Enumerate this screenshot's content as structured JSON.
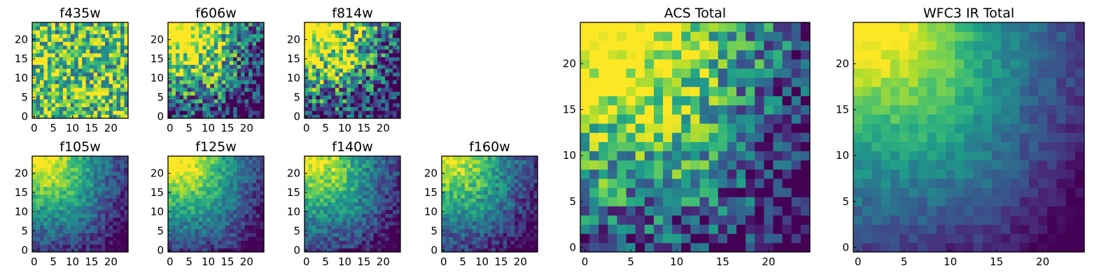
{
  "chart_data": [
    {
      "type": "heatmap",
      "title": "f435w",
      "grid_size": [
        25,
        25
      ],
      "xlim": [
        0,
        24
      ],
      "ylim": [
        0,
        24
      ],
      "xticks": [
        "0",
        "5",
        "10",
        "15",
        "20"
      ],
      "yticks": [
        "0",
        "5",
        "10",
        "15",
        "20"
      ],
      "colormap": "viridis",
      "pattern": "uniform noise, no gradient",
      "peak_corner": "none",
      "mean_level": 0.72,
      "noise_level": 0.4
    },
    {
      "type": "heatmap",
      "title": "f606w",
      "grid_size": [
        25,
        25
      ],
      "xlim": [
        0,
        24
      ],
      "ylim": [
        0,
        24
      ],
      "xticks": [
        "0",
        "5",
        "10",
        "15",
        "20"
      ],
      "yticks": [
        "0",
        "5",
        "10",
        "15",
        "20"
      ],
      "colormap": "viridis",
      "pattern": "bright top-left corner with diagonal ridge, noisy",
      "peak_corner": "top-left",
      "mean_level": 0.6,
      "noise_level": 0.42
    },
    {
      "type": "heatmap",
      "title": "f814w",
      "grid_size": [
        25,
        25
      ],
      "xlim": [
        0,
        24
      ],
      "ylim": [
        0,
        24
      ],
      "xticks": [
        "0",
        "5",
        "10",
        "15",
        "20"
      ],
      "yticks": [
        "0",
        "5",
        "10",
        "15",
        "20"
      ],
      "colormap": "viridis",
      "pattern": "bright top-left corner, noisy",
      "peak_corner": "top-left",
      "mean_level": 0.58,
      "noise_level": 0.45
    },
    {
      "type": "heatmap",
      "title": "f105w",
      "grid_size": [
        25,
        25
      ],
      "xlim": [
        0,
        24
      ],
      "ylim": [
        0,
        24
      ],
      "xticks": [
        "0",
        "5",
        "10",
        "15",
        "20"
      ],
      "yticks": [
        "0",
        "5",
        "10",
        "15",
        "20"
      ],
      "colormap": "viridis",
      "pattern": "smooth falloff from top-left with diagonal ridge",
      "peak_corner": "top-left",
      "mean_level": 0.4,
      "noise_level": 0.14
    },
    {
      "type": "heatmap",
      "title": "f125w",
      "grid_size": [
        25,
        25
      ],
      "xlim": [
        0,
        24
      ],
      "ylim": [
        0,
        24
      ],
      "xticks": [
        "0",
        "5",
        "10",
        "15",
        "20"
      ],
      "yticks": [
        "0",
        "5",
        "10",
        "15",
        "20"
      ],
      "colormap": "viridis",
      "pattern": "smooth falloff from top-left with diagonal ridge",
      "peak_corner": "top-left",
      "mean_level": 0.45,
      "noise_level": 0.14
    },
    {
      "type": "heatmap",
      "title": "f140w",
      "grid_size": [
        25,
        25
      ],
      "xlim": [
        0,
        24
      ],
      "ylim": [
        0,
        24
      ],
      "xticks": [
        "0",
        "5",
        "10",
        "15",
        "20"
      ],
      "yticks": [
        "0",
        "5",
        "10",
        "15",
        "20"
      ],
      "colormap": "viridis",
      "pattern": "smooth falloff from top-left with diagonal ridge",
      "peak_corner": "top-left",
      "mean_level": 0.38,
      "noise_level": 0.16
    },
    {
      "type": "heatmap",
      "title": "f160w",
      "grid_size": [
        25,
        25
      ],
      "xlim": [
        0,
        24
      ],
      "ylim": [
        0,
        24
      ],
      "xticks": [
        "0",
        "5",
        "10",
        "15",
        "20"
      ],
      "yticks": [
        "0",
        "5",
        "10",
        "15",
        "20"
      ],
      "colormap": "viridis",
      "pattern": "smooth falloff from top-left with diagonal ridge",
      "peak_corner": "top-left",
      "mean_level": 0.36,
      "noise_level": 0.16
    },
    {
      "type": "heatmap",
      "title": "ACS Total",
      "grid_size": [
        25,
        25
      ],
      "xlim": [
        0,
        24
      ],
      "ylim": [
        0,
        24
      ],
      "xticks": [
        "0",
        "5",
        "10",
        "15",
        "20"
      ],
      "yticks": [
        "0",
        "5",
        "10",
        "15",
        "20"
      ],
      "colormap": "viridis",
      "pattern": "bright top-left corner with diagonal ridge, noisy",
      "peak_corner": "top-left",
      "mean_level": 0.64,
      "noise_level": 0.34
    },
    {
      "type": "heatmap",
      "title": "WFC3 IR Total",
      "grid_size": [
        25,
        25
      ],
      "xlim": [
        0,
        24
      ],
      "ylim": [
        0,
        24
      ],
      "xticks": [
        "0",
        "5",
        "10",
        "15",
        "20"
      ],
      "yticks": [
        "0",
        "5",
        "10",
        "15",
        "20"
      ],
      "colormap": "viridis",
      "pattern": "smooth falloff from top-left with diagonal ridge",
      "peak_corner": "top-left",
      "mean_level": 0.42,
      "noise_level": 0.08
    }
  ]
}
